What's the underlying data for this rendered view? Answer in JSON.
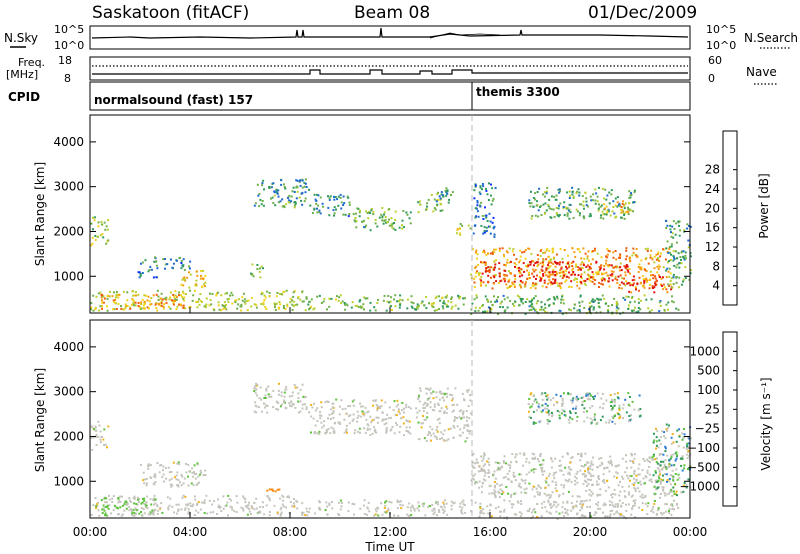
{
  "header": {
    "station": "Saskatoon (fitACF)",
    "beam": "Beam 08",
    "date": "01/Dec/2009"
  },
  "noise_panel": {
    "left_label": "N.Sky",
    "left_ticks": [
      "10^5",
      "10^0"
    ],
    "right_ticks": [
      "10^5",
      "10^0"
    ],
    "right_label": "N.Search"
  },
  "freq_panel": {
    "left_label_top": "Freq.",
    "left_label_bottom": "[MHz]",
    "left_ticks": [
      "18",
      "8"
    ],
    "right_ticks": [
      "60",
      "0"
    ],
    "right_label": "Nave"
  },
  "cpid_panel": {
    "label": "CPID",
    "programs": [
      {
        "name": "normalsound (fast) 157",
        "start_hour": 0
      },
      {
        "name": "themis 3300",
        "start_hour": 15.1
      }
    ]
  },
  "colors": {
    "power": [
      "#1030ff",
      "#1e6ad0",
      "#2f9a5a",
      "#6fb04a",
      "#b8cf2e",
      "#f2d21e",
      "#f59a12",
      "#f05a0c",
      "#e01010"
    ],
    "velocity_pos": [
      "#1e3fb8",
      "#2a7ad6",
      "#2f9a5a",
      "#5cc23a"
    ],
    "velocity_neutral": "#c4c4bc",
    "velocity_neg": [
      "#f2b21a",
      "#f58a12",
      "#f0500c",
      "#e01010"
    ]
  },
  "chart_data": [
    {
      "type": "heatmap",
      "ylabel": "Slant Range [km]",
      "yticks": [
        "1000",
        "2000",
        "3000",
        "4000"
      ],
      "ylim": [
        180,
        4600
      ],
      "xlim": [
        0,
        24
      ],
      "xticks": [
        "00:00",
        "04:00",
        "08:00",
        "12:00",
        "16:00",
        "20:00",
        "00:00"
      ],
      "colorbar": {
        "label": "Power [dB]",
        "ticks": [
          "4",
          "8",
          "12",
          "16",
          "20",
          "24",
          "28"
        ],
        "range": [
          0,
          30
        ]
      },
      "regions": [
        {
          "t0": 0.0,
          "t1": 8.5,
          "r0": 250,
          "r1": 700,
          "level": 15
        },
        {
          "t0": 0.4,
          "t1": 3.8,
          "r0": 280,
          "r1": 620,
          "level": 22
        },
        {
          "t0": 8.5,
          "t1": 15.0,
          "r0": 250,
          "r1": 600,
          "level": 12
        },
        {
          "t0": 0.0,
          "t1": 0.7,
          "r0": 1700,
          "r1": 2350,
          "level": 14
        },
        {
          "t0": 1.8,
          "t1": 2.7,
          "r0": 950,
          "r1": 1150,
          "level": 6
        },
        {
          "t0": 2.0,
          "t1": 4.0,
          "r0": 1150,
          "r1": 1450,
          "level": 8
        },
        {
          "t0": 3.5,
          "t1": 4.6,
          "r0": 750,
          "r1": 1200,
          "level": 18
        },
        {
          "t0": 6.4,
          "t1": 6.9,
          "r0": 900,
          "r1": 1300,
          "level": 10
        },
        {
          "t0": 6.5,
          "t1": 8.8,
          "r0": 2550,
          "r1": 3200,
          "level": 9
        },
        {
          "t0": 8.8,
          "t1": 10.4,
          "r0": 2350,
          "r1": 2850,
          "level": 8
        },
        {
          "t0": 10.5,
          "t1": 12.8,
          "r0": 2050,
          "r1": 2550,
          "level": 11
        },
        {
          "t0": 13.0,
          "t1": 14.1,
          "r0": 2450,
          "r1": 2850,
          "level": 12
        },
        {
          "t0": 13.8,
          "t1": 14.6,
          "r0": 2650,
          "r1": 3100,
          "level": 9
        },
        {
          "t0": 14.6,
          "t1": 15.2,
          "r0": 1900,
          "r1": 2200,
          "level": 16
        },
        {
          "t0": 15.3,
          "t1": 16.2,
          "r0": 1900,
          "r1": 3100,
          "level": 6
        },
        {
          "t0": 15.2,
          "t1": 23.2,
          "r0": 750,
          "r1": 1650,
          "level": 20
        },
        {
          "t0": 15.6,
          "t1": 21.5,
          "r0": 850,
          "r1": 1350,
          "level": 27
        },
        {
          "t0": 21.5,
          "t1": 23.3,
          "r0": 650,
          "r1": 1050,
          "level": 26
        },
        {
          "t0": 23.0,
          "t1": 24.0,
          "r0": 750,
          "r1": 2300,
          "level": 10
        },
        {
          "t0": 17.5,
          "t1": 21.8,
          "r0": 2300,
          "r1": 3000,
          "level": 10
        },
        {
          "t0": 20.4,
          "t1": 21.6,
          "r0": 2350,
          "r1": 2700,
          "level": 20
        },
        {
          "t0": 15.2,
          "t1": 23.5,
          "r0": 180,
          "r1": 600,
          "level": 11
        }
      ]
    },
    {
      "type": "heatmap",
      "ylabel": "Slant Range [km]",
      "yticks": [
        "1000",
        "2000",
        "3000",
        "4000"
      ],
      "ylim": [
        180,
        4600
      ],
      "xlim": [
        0,
        24
      ],
      "xticks": [
        "00:00",
        "04:00",
        "08:00",
        "12:00",
        "16:00",
        "20:00",
        "00:00"
      ],
      "xlabel": "Time UT",
      "colorbar": {
        "label": "Velocity [m s⁻¹]",
        "ticks": [
          "1000",
          "500",
          "100",
          "25",
          "−25",
          "−100",
          "−500",
          "−1000"
        ]
      },
      "regions": [
        {
          "t0": 0.0,
          "t1": 8.5,
          "r0": 250,
          "r1": 700,
          "class": "neutral"
        },
        {
          "t0": 0.4,
          "t1": 2.6,
          "r0": 250,
          "r1": 650,
          "class": "pos_low"
        },
        {
          "t0": 8.5,
          "t1": 15.0,
          "r0": 250,
          "r1": 600,
          "class": "neutral"
        },
        {
          "t0": 0.0,
          "t1": 0.7,
          "r0": 1700,
          "r1": 2350,
          "class": "neutral"
        },
        {
          "t0": 2.0,
          "t1": 4.6,
          "r0": 900,
          "r1": 1450,
          "class": "neutral"
        },
        {
          "t0": 6.9,
          "t1": 7.6,
          "r0": 750,
          "r1": 850,
          "class": "neg_low"
        },
        {
          "t0": 6.5,
          "t1": 8.8,
          "r0": 2550,
          "r1": 3200,
          "class": "neutral"
        },
        {
          "t0": 8.8,
          "t1": 12.8,
          "r0": 2050,
          "r1": 2850,
          "class": "neutral"
        },
        {
          "t0": 13.0,
          "t1": 15.2,
          "r0": 1900,
          "r1": 3100,
          "class": "neutral"
        },
        {
          "t0": 15.2,
          "t1": 23.3,
          "r0": 650,
          "r1": 1650,
          "class": "neutral"
        },
        {
          "t0": 17.5,
          "t1": 22.0,
          "r0": 2300,
          "r1": 3000,
          "class": "mixed"
        },
        {
          "t0": 22.5,
          "t1": 24.0,
          "r0": 700,
          "r1": 2300,
          "class": "mixed"
        },
        {
          "t0": 15.2,
          "t1": 23.5,
          "r0": 180,
          "r1": 600,
          "class": "neutral"
        }
      ]
    }
  ]
}
